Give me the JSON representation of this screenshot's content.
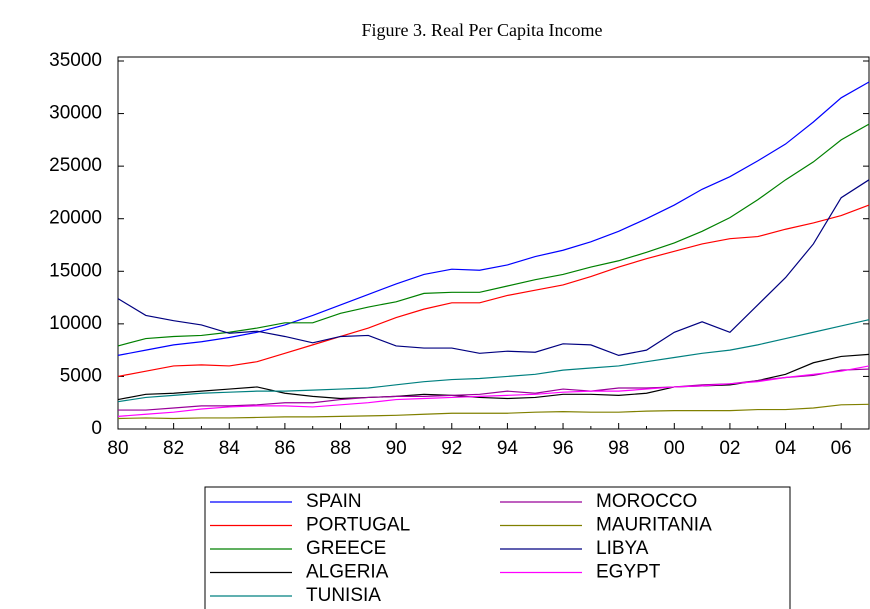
{
  "chart_data": {
    "type": "line",
    "title": "Figure 3.  Real Per Capita Income",
    "categories": [
      "80",
      null,
      "82",
      null,
      "84",
      null,
      "86",
      null,
      "88",
      null,
      "90",
      null,
      "92",
      null,
      "94",
      null,
      "96",
      null,
      "98",
      null,
      "00",
      null,
      "02",
      null,
      "04",
      null,
      "06",
      null
    ],
    "ylim": [
      0,
      35000
    ],
    "yticks": [
      0,
      5000,
      10000,
      15000,
      20000,
      25000,
      30000,
      35000
    ],
    "series": [
      {
        "name": "SPAIN",
        "color": "#0000ff",
        "values": [
          7000,
          7500,
          8000,
          8300,
          8700,
          9200,
          9900,
          10800,
          11800,
          12800,
          13800,
          14700,
          15200,
          15100,
          15600,
          16400,
          17000,
          17800,
          18800,
          20000,
          21300,
          22800,
          24000,
          25500,
          27100,
          29200,
          31500,
          33000
        ]
      },
      {
        "name": "PORTUGAL",
        "color": "#ff0000",
        "values": [
          5000,
          5500,
          6000,
          6100,
          6000,
          6400,
          7200,
          8000,
          8800,
          9600,
          10600,
          11400,
          12000,
          12000,
          12700,
          13200,
          13700,
          14500,
          15400,
          16200,
          16900,
          17600,
          18100,
          18300,
          19000,
          19600,
          20300,
          21300
        ]
      },
      {
        "name": "GREECE",
        "color": "#008000",
        "values": [
          7900,
          8600,
          8800,
          8900,
          9200,
          9600,
          10100,
          10100,
          11000,
          11600,
          12100,
          12900,
          13000,
          13000,
          13600,
          14200,
          14700,
          15400,
          16000,
          16800,
          17700,
          18800,
          20100,
          21800,
          23700,
          25400,
          27500,
          29000
        ]
      },
      {
        "name": "ALGERIA",
        "color": "#000000",
        "values": [
          2800,
          3300,
          3400,
          3600,
          3800,
          4000,
          3400,
          3100,
          2900,
          3000,
          3100,
          3300,
          3200,
          3000,
          2900,
          3000,
          3300,
          3300,
          3200,
          3400,
          4000,
          4100,
          4200,
          4600,
          5200,
          6300,
          6900,
          7100
        ]
      },
      {
        "name": "TUNISIA",
        "color": "#008080",
        "values": [
          2600,
          3000,
          3200,
          3400,
          3500,
          3600,
          3600,
          3700,
          3800,
          3900,
          4200,
          4500,
          4700,
          4800,
          5000,
          5200,
          5600,
          5800,
          6000,
          6400,
          6800,
          7200,
          7500,
          8000,
          8600,
          9200,
          9800,
          10400
        ]
      },
      {
        "name": "MOROCCO",
        "color": "#990099",
        "values": [
          1800,
          1800,
          2000,
          2200,
          2200,
          2300,
          2500,
          2500,
          2800,
          3000,
          3100,
          3100,
          3200,
          3300,
          3600,
          3400,
          3800,
          3600,
          3900,
          3900,
          4000,
          4200,
          4300,
          4600,
          4900,
          5100,
          5600,
          5700
        ]
      },
      {
        "name": "MAURITANIA",
        "color": "#808000",
        "values": [
          1000,
          1050,
          1000,
          1050,
          1050,
          1100,
          1150,
          1150,
          1200,
          1250,
          1300,
          1400,
          1500,
          1500,
          1500,
          1600,
          1650,
          1600,
          1600,
          1700,
          1750,
          1750,
          1750,
          1850,
          1850,
          2000,
          2300,
          2350
        ]
      },
      {
        "name": "LIBYA",
        "color": "#000080",
        "values": [
          12400,
          10800,
          10300,
          9900,
          9100,
          9300,
          8800,
          8200,
          8800,
          8900,
          7900,
          7700,
          7700,
          7200,
          7400,
          7300,
          8100,
          8000,
          7000,
          7500,
          9200,
          10200,
          9200,
          11800,
          14400,
          17600,
          22000,
          23700
        ]
      },
      {
        "name": "EGYPT",
        "color": "#ff00ff",
        "values": [
          1200,
          1400,
          1600,
          1900,
          2100,
          2200,
          2200,
          2100,
          2300,
          2500,
          2800,
          2900,
          3000,
          3100,
          3200,
          3300,
          3500,
          3600,
          3600,
          3800,
          4000,
          4100,
          4300,
          4500,
          4900,
          5200,
          5500,
          6000
        ]
      }
    ]
  }
}
